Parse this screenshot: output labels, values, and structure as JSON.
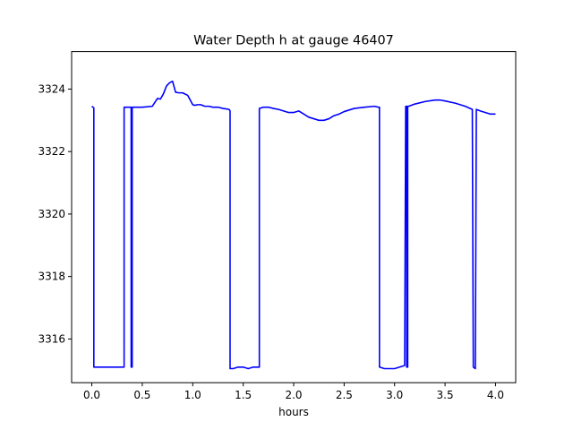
{
  "chart_data": {
    "type": "line",
    "title": "Water Depth h at gauge 46407",
    "xlabel": "hours",
    "ylabel": "",
    "xlim": [
      -0.2,
      4.2
    ],
    "ylim": [
      3314.6,
      3325.2
    ],
    "xticks": [
      0.0,
      0.5,
      1.0,
      1.5,
      2.0,
      2.5,
      3.0,
      3.5,
      4.0
    ],
    "xtick_labels": [
      "0.0",
      "0.5",
      "1.0",
      "1.5",
      "2.0",
      "2.5",
      "3.0",
      "3.5",
      "4.0"
    ],
    "yticks": [
      3316,
      3318,
      3320,
      3322,
      3324
    ],
    "ytick_labels": [
      "3316",
      "3318",
      "3320",
      "3322",
      "3324"
    ],
    "grid": false,
    "series": [
      {
        "color": "#0000ff",
        "x": [
          0.0,
          0.02,
          0.02,
          0.32,
          0.32,
          0.39,
          0.39,
          0.4,
          0.4,
          0.41,
          0.41,
          0.5,
          0.6,
          0.65,
          0.68,
          0.71,
          0.74,
          0.77,
          0.8,
          0.83,
          0.86,
          0.9,
          0.95,
          1.0,
          1.02,
          1.05,
          1.08,
          1.12,
          1.16,
          1.2,
          1.25,
          1.3,
          1.36,
          1.37,
          1.37,
          1.4,
          1.45,
          1.5,
          1.55,
          1.6,
          1.65,
          1.66,
          1.66,
          1.7,
          1.75,
          1.8,
          1.85,
          1.9,
          1.95,
          2.0,
          2.05,
          2.1,
          2.15,
          2.2,
          2.25,
          2.3,
          2.35,
          2.4,
          2.45,
          2.5,
          2.6,
          2.7,
          2.8,
          2.84,
          2.85,
          2.85,
          2.9,
          2.95,
          3.0,
          3.05,
          3.1,
          3.11,
          3.11,
          3.12,
          3.12,
          3.13,
          3.13,
          3.14,
          3.14,
          3.2,
          3.3,
          3.4,
          3.45,
          3.5,
          3.6,
          3.7,
          3.77,
          3.78,
          3.78,
          3.8,
          3.8,
          3.81,
          3.81,
          3.85,
          3.9,
          3.95,
          4.0
        ],
        "y": [
          3323.45,
          3323.4,
          3315.1,
          3315.1,
          3323.42,
          3323.42,
          3315.1,
          3315.1,
          3323.42,
          3323.42,
          3323.42,
          3323.42,
          3323.45,
          3323.7,
          3323.68,
          3323.85,
          3324.1,
          3324.2,
          3324.25,
          3323.9,
          3323.88,
          3323.88,
          3323.8,
          3323.5,
          3323.48,
          3323.5,
          3323.5,
          3323.45,
          3323.45,
          3323.42,
          3323.42,
          3323.38,
          3323.35,
          3323.3,
          3315.05,
          3315.05,
          3315.1,
          3315.1,
          3315.05,
          3315.1,
          3315.1,
          3315.1,
          3323.38,
          3323.42,
          3323.42,
          3323.38,
          3323.35,
          3323.3,
          3323.25,
          3323.25,
          3323.3,
          3323.2,
          3323.1,
          3323.05,
          3323.0,
          3323.0,
          3323.05,
          3323.15,
          3323.2,
          3323.28,
          3323.38,
          3323.42,
          3323.45,
          3323.42,
          3323.42,
          3315.1,
          3315.05,
          3315.05,
          3315.05,
          3315.1,
          3315.15,
          3323.45,
          3323.45,
          3323.45,
          3315.1,
          3315.1,
          3323.45,
          3323.45,
          3323.45,
          3323.52,
          3323.6,
          3323.65,
          3323.65,
          3323.62,
          3323.55,
          3323.45,
          3323.35,
          3315.1,
          3315.1,
          3315.05,
          3315.05,
          3323.35,
          3323.35,
          3323.3,
          3323.25,
          3323.2,
          3323.2
        ]
      }
    ]
  }
}
